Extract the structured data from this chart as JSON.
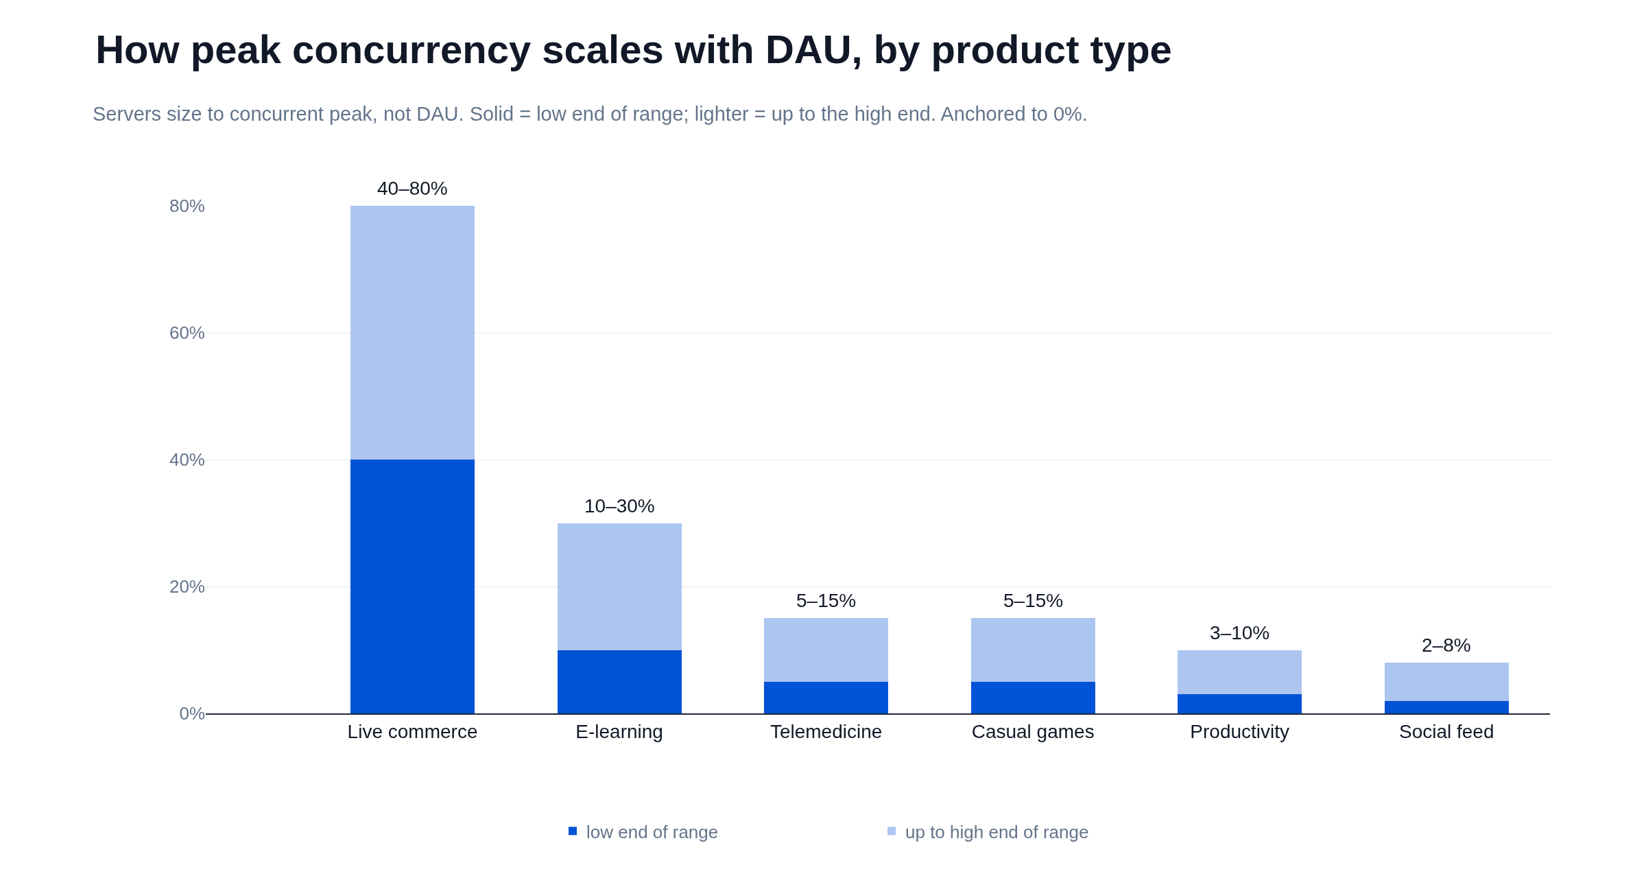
{
  "chart_data": {
    "type": "bar",
    "title": "How peak concurrency scales with DAU, by product type",
    "subtitle": "Servers size to concurrent peak, not DAU. Solid = low end of range; lighter = up to the high end. Anchored to 0%.",
    "categories": [
      "Live commerce",
      "E-learning",
      "Telemedicine",
      "Casual games",
      "Productivity",
      "Social feed"
    ],
    "stacked": true,
    "series": [
      {
        "name": "low end of range",
        "color": "#0052d6",
        "values": [
          40,
          10,
          5,
          5,
          3,
          2
        ]
      },
      {
        "name": "up to high end of range",
        "color": "#adc6f0",
        "values": [
          40,
          20,
          10,
          10,
          7,
          6
        ]
      }
    ],
    "totals": [
      "40–80%",
      "10–30%",
      "5–15%",
      "5–15%",
      "3–10%",
      "2–8%"
    ],
    "ylim": [
      0,
      80
    ],
    "yticks": [
      {
        "value": 0,
        "label": "0%"
      },
      {
        "value": 20,
        "label": "20%"
      },
      {
        "value": 40,
        "label": "40%"
      },
      {
        "value": 60,
        "label": "60%"
      },
      {
        "value": 80,
        "label": "80%"
      }
    ],
    "grid": "y",
    "legend": "bottom"
  }
}
